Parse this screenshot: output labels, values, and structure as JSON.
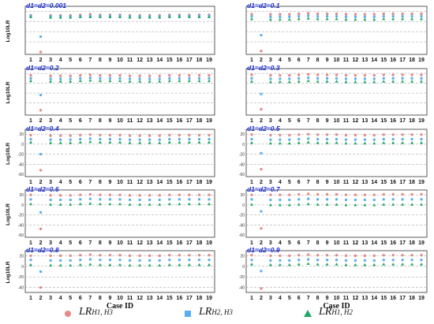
{
  "figure": {
    "x_axis_label": "Case ID",
    "y_axis_label_main": "Log",
    "y_axis_label_sub": "10",
    "y_axis_label_tail": "LR",
    "colors": {
      "H1_H3": "#e58a8a",
      "H2_H3": "#5aaef0",
      "H1_H2": "#1fa866",
      "panel_title": "#1a2fd6"
    }
  },
  "legend": [
    {
      "series": "H1_H3",
      "label_main": "LR",
      "label_sub": "H1, H3",
      "marker": "circle"
    },
    {
      "series": "H2_H3",
      "label_main": "LR",
      "label_sub": "H2, H3",
      "marker": "square"
    },
    {
      "series": "H1_H2",
      "label_main": "LR",
      "label_sub": "H1, H2",
      "marker": "triangle"
    }
  ],
  "chart_data": [
    {
      "type": "scatter",
      "title": "d1=d2=0.001",
      "xlabel": "",
      "ylabel": "Log10LR",
      "categories": [
        "1",
        "2",
        "3",
        "4",
        "5",
        "6",
        "7",
        "8",
        "9",
        "10",
        "11",
        "12",
        "13",
        "14",
        "15",
        "16",
        "17",
        "18",
        "19"
      ],
      "ylim": [
        -60,
        25
      ],
      "yticks": [],
      "grid": "horizontal-dashed",
      "series": [
        {
          "name": "LR H1,H3",
          "values": [
            12,
            -60,
            12,
            12,
            12,
            13,
            14,
            13,
            13,
            13,
            12,
            12,
            12,
            12,
            13,
            13,
            13,
            13,
            13
          ]
        },
        {
          "name": "LR H2,H3",
          "values": [
            11,
            -30,
            10,
            10,
            10,
            10,
            11,
            11,
            11,
            11,
            10,
            10,
            10,
            10,
            11,
            11,
            11,
            11,
            11
          ]
        },
        {
          "name": "LR H1,H2",
          "values": [
            9,
            null,
            8,
            8,
            8,
            9,
            9,
            9,
            9,
            9,
            8,
            8,
            8,
            8,
            9,
            9,
            9,
            9,
            9
          ]
        }
      ]
    },
    {
      "type": "scatter",
      "title": "d1=d2=0.1",
      "xlabel": "",
      "ylabel": "",
      "categories": [
        "1",
        "2",
        "3",
        "4",
        "5",
        "6",
        "7",
        "8",
        "9",
        "10",
        "11",
        "12",
        "13",
        "14",
        "15",
        "16",
        "17",
        "18",
        "19"
      ],
      "ylim": [
        -60,
        25
      ],
      "yticks": [],
      "grid": "horizontal-dashed",
      "series": [
        {
          "name": "LR H1,H3",
          "values": [
            14,
            -58,
            14,
            14,
            14,
            15,
            16,
            15,
            15,
            15,
            14,
            14,
            14,
            14,
            15,
            15,
            15,
            15,
            15
          ]
        },
        {
          "name": "LR H2,H3",
          "values": [
            10,
            -27,
            9,
            9,
            9,
            10,
            11,
            10,
            10,
            10,
            9,
            9,
            9,
            9,
            10,
            10,
            10,
            10,
            10
          ]
        },
        {
          "name": "LR H1,H2",
          "values": [
            5,
            null,
            4,
            4,
            4,
            5,
            6,
            5,
            5,
            5,
            4,
            4,
            4,
            4,
            5,
            5,
            5,
            5,
            5
          ]
        }
      ]
    },
    {
      "type": "scatter",
      "title": "d1=d2=0.2",
      "xlabel": "",
      "ylabel": "Log10LR",
      "categories": [
        "1",
        "2",
        "3",
        "4",
        "5",
        "6",
        "7",
        "8",
        "9",
        "10",
        "11",
        "12",
        "13",
        "14",
        "15",
        "16",
        "17",
        "18",
        "19"
      ],
      "ylim": [
        -60,
        25
      ],
      "yticks": [],
      "grid": "horizontal-dashed",
      "series": [
        {
          "name": "LR H1,H3",
          "values": [
            16,
            -55,
            15,
            15,
            15,
            16,
            17,
            16,
            16,
            16,
            15,
            15,
            15,
            15,
            16,
            16,
            16,
            16,
            16
          ]
        },
        {
          "name": "LR H2,H3",
          "values": [
            10,
            -24,
            9,
            9,
            9,
            10,
            11,
            10,
            10,
            10,
            9,
            9,
            9,
            9,
            10,
            10,
            10,
            10,
            10
          ]
        },
        {
          "name": "LR H1,H2",
          "values": [
            5,
            null,
            4,
            4,
            4,
            5,
            6,
            5,
            5,
            5,
            4,
            4,
            4,
            4,
            5,
            5,
            5,
            5,
            5
          ]
        }
      ]
    },
    {
      "type": "scatter",
      "title": "d1=d2=0.3",
      "xlabel": "",
      "ylabel": "",
      "categories": [
        "1",
        "2",
        "3",
        "4",
        "5",
        "6",
        "7",
        "8",
        "9",
        "10",
        "11",
        "12",
        "13",
        "14",
        "15",
        "16",
        "17",
        "18",
        "19"
      ],
      "ylim": [
        -60,
        25
      ],
      "yticks": [],
      "grid": "horizontal-dashed",
      "series": [
        {
          "name": "LR H1,H3",
          "values": [
            17,
            -53,
            16,
            16,
            16,
            17,
            18,
            17,
            17,
            17,
            16,
            16,
            16,
            16,
            17,
            17,
            17,
            17,
            17
          ]
        },
        {
          "name": "LR H2,H3",
          "values": [
            10,
            -22,
            9,
            9,
            9,
            10,
            11,
            10,
            10,
            10,
            9,
            9,
            9,
            9,
            10,
            10,
            10,
            10,
            10
          ]
        },
        {
          "name": "LR H1,H2",
          "values": [
            4,
            null,
            3,
            3,
            3,
            4,
            5,
            4,
            4,
            4,
            3,
            3,
            3,
            3,
            4,
            4,
            4,
            4,
            4
          ]
        }
      ]
    },
    {
      "type": "scatter",
      "title": "d1=d2=0.4",
      "xlabel": "",
      "ylabel": "Log10LR",
      "categories": [
        "1",
        "2",
        "3",
        "4",
        "5",
        "6",
        "7",
        "8",
        "9",
        "10",
        "11",
        "12",
        "13",
        "14",
        "15",
        "16",
        "17",
        "18",
        "19"
      ],
      "ylim": [
        -60,
        25
      ],
      "yticks": [
        20,
        0,
        -20,
        -40,
        -60
      ],
      "grid": "horizontal-dashed",
      "series": [
        {
          "name": "LR H1,H3",
          "values": [
            18,
            -52,
            17,
            17,
            17,
            18,
            19,
            18,
            18,
            18,
            17,
            17,
            17,
            17,
            18,
            18,
            18,
            18,
            18
          ]
        },
        {
          "name": "LR H2,H3",
          "values": [
            10,
            -20,
            9,
            9,
            9,
            10,
            11,
            10,
            10,
            10,
            9,
            9,
            9,
            9,
            10,
            10,
            10,
            10,
            10
          ]
        },
        {
          "name": "LR H1,H2",
          "values": [
            4,
            null,
            3,
            3,
            3,
            4,
            5,
            4,
            4,
            4,
            3,
            3,
            3,
            3,
            4,
            4,
            4,
            4,
            4
          ]
        }
      ]
    },
    {
      "type": "scatter",
      "title": "d1=d2=0.5",
      "xlabel": "",
      "ylabel": "",
      "categories": [
        "1",
        "2",
        "3",
        "4",
        "5",
        "6",
        "7",
        "8",
        "9",
        "10",
        "11",
        "12",
        "13",
        "14",
        "15",
        "16",
        "17",
        "18",
        "19"
      ],
      "ylim": [
        -60,
        25
      ],
      "yticks": [
        20,
        0,
        -20,
        -40,
        -60
      ],
      "grid": "horizontal-dashed",
      "series": [
        {
          "name": "LR H1,H3",
          "values": [
            19,
            -50,
            18,
            18,
            18,
            19,
            20,
            19,
            19,
            19,
            18,
            18,
            18,
            18,
            19,
            19,
            19,
            19,
            19
          ]
        },
        {
          "name": "LR H2,H3",
          "values": [
            10,
            -18,
            9,
            9,
            9,
            10,
            11,
            10,
            10,
            10,
            9,
            9,
            9,
            9,
            10,
            10,
            10,
            10,
            10
          ]
        },
        {
          "name": "LR H1,H2",
          "values": [
            3,
            null,
            2,
            2,
            2,
            3,
            4,
            3,
            3,
            3,
            2,
            2,
            2,
            2,
            3,
            3,
            3,
            3,
            3
          ]
        }
      ]
    },
    {
      "type": "scatter",
      "title": "d1=d2=0.6",
      "xlabel": "",
      "ylabel": "Log10LR",
      "categories": [
        "1",
        "2",
        "3",
        "4",
        "5",
        "6",
        "7",
        "8",
        "9",
        "10",
        "11",
        "12",
        "13",
        "14",
        "15",
        "16",
        "17",
        "18",
        "19"
      ],
      "ylim": [
        -60,
        25
      ],
      "yticks": [
        20,
        0,
        -20,
        -40,
        -60
      ],
      "grid": "horizontal-dashed",
      "series": [
        {
          "name": "LR H1,H3",
          "values": [
            20,
            -48,
            19,
            19,
            19,
            20,
            21,
            20,
            20,
            20,
            19,
            19,
            19,
            19,
            20,
            20,
            20,
            20,
            20
          ]
        },
        {
          "name": "LR H2,H3",
          "values": [
            11,
            -15,
            10,
            10,
            10,
            11,
            12,
            11,
            11,
            11,
            10,
            10,
            10,
            10,
            11,
            11,
            11,
            11,
            11
          ]
        },
        {
          "name": "LR H1,H2",
          "values": [
            2,
            null,
            1,
            1,
            1,
            2,
            3,
            2,
            2,
            2,
            1,
            1,
            1,
            1,
            2,
            2,
            2,
            2,
            2
          ]
        }
      ]
    },
    {
      "type": "scatter",
      "title": "d1=d2=0.7",
      "xlabel": "",
      "ylabel": "",
      "categories": [
        "1",
        "2",
        "3",
        "4",
        "5",
        "6",
        "7",
        "8",
        "9",
        "10",
        "11",
        "12",
        "13",
        "14",
        "15",
        "16",
        "17",
        "18",
        "19"
      ],
      "ylim": [
        -60,
        25
      ],
      "yticks": [
        20,
        0,
        -20,
        -40,
        -60
      ],
      "grid": "horizontal-dashed",
      "series": [
        {
          "name": "LR H1,H3",
          "values": [
            20,
            -47,
            20,
            20,
            20,
            21,
            22,
            21,
            21,
            21,
            20,
            20,
            20,
            20,
            21,
            21,
            21,
            21,
            21
          ]
        },
        {
          "name": "LR H2,H3",
          "values": [
            11,
            -13,
            10,
            10,
            10,
            11,
            12,
            11,
            11,
            11,
            10,
            10,
            10,
            10,
            11,
            11,
            11,
            11,
            11
          ]
        },
        {
          "name": "LR H1,H2",
          "values": [
            1,
            null,
            0,
            0,
            0,
            1,
            2,
            1,
            1,
            1,
            0,
            0,
            0,
            0,
            1,
            1,
            1,
            1,
            1
          ]
        }
      ]
    },
    {
      "type": "scatter",
      "title": "d1=d2=0.8",
      "xlabel": "Case ID",
      "ylabel": "Log10LR",
      "categories": [
        "1",
        "2",
        "3",
        "4",
        "5",
        "6",
        "7",
        "8",
        "9",
        "10",
        "11",
        "12",
        "13",
        "14",
        "15",
        "16",
        "17",
        "18",
        "19"
      ],
      "ylim": [
        -45,
        25
      ],
      "yticks": [
        20,
        0,
        -20,
        -40
      ],
      "grid": "horizontal-dashed",
      "series": [
        {
          "name": "LR H1,H3",
          "values": [
            20,
            -40,
            20,
            20,
            20,
            21,
            22,
            21,
            21,
            21,
            20,
            20,
            20,
            20,
            21,
            21,
            21,
            21,
            21
          ]
        },
        {
          "name": "LR H2,H3",
          "values": [
            12,
            -10,
            11,
            11,
            11,
            12,
            13,
            12,
            12,
            12,
            11,
            11,
            11,
            11,
            12,
            12,
            12,
            12,
            12
          ]
        },
        {
          "name": "LR H1,H2",
          "values": [
            3,
            null,
            2,
            2,
            2,
            3,
            4,
            3,
            3,
            3,
            2,
            2,
            2,
            2,
            3,
            3,
            3,
            3,
            3
          ]
        }
      ]
    },
    {
      "type": "scatter",
      "title": "d1=d2=0.9",
      "xlabel": "Case ID",
      "ylabel": "",
      "categories": [
        "1",
        "2",
        "3",
        "4",
        "5",
        "6",
        "7",
        "8",
        "9",
        "10",
        "11",
        "12",
        "13",
        "14",
        "15",
        "16",
        "17",
        "18",
        "19"
      ],
      "ylim": [
        -45,
        25
      ],
      "yticks": [
        20,
        0,
        -20,
        -40
      ],
      "grid": "horizontal-dashed",
      "series": [
        {
          "name": "LR H1,H3",
          "values": [
            21,
            -42,
            20,
            20,
            20,
            21,
            22,
            21,
            21,
            21,
            20,
            20,
            20,
            20,
            21,
            21,
            21,
            21,
            21
          ]
        },
        {
          "name": "LR H2,H3",
          "values": [
            12,
            -9,
            11,
            11,
            11,
            12,
            13,
            12,
            12,
            12,
            11,
            11,
            11,
            11,
            12,
            12,
            12,
            12,
            12
          ]
        },
        {
          "name": "LR H1,H2",
          "values": [
            4,
            null,
            3,
            3,
            3,
            4,
            5,
            4,
            4,
            4,
            3,
            3,
            3,
            3,
            4,
            4,
            4,
            4,
            4
          ]
        }
      ]
    }
  ]
}
